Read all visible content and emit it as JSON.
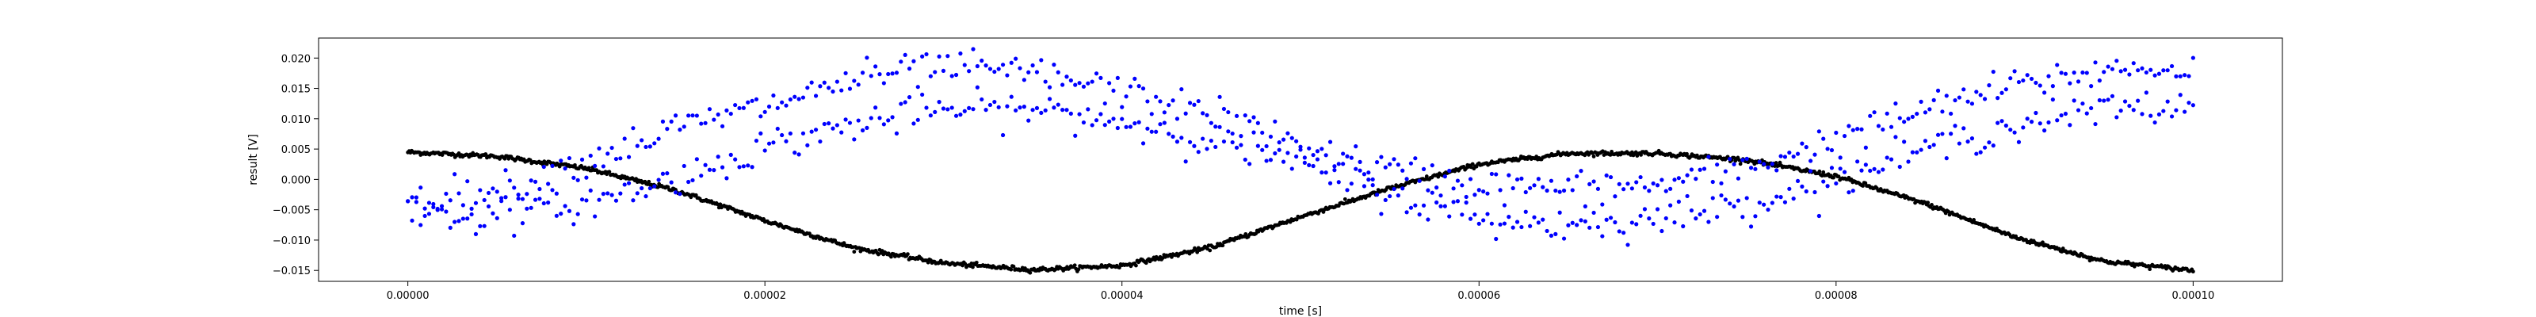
{
  "chart_data": {
    "type": "scatter",
    "title": "",
    "xlabel": "time [s]",
    "ylabel": "result [V]",
    "xlim": [
      -5e-06,
      0.000105
    ],
    "ylim": [
      -0.0168,
      0.0233
    ],
    "x_ticks": [
      0,
      2e-05,
      4e-05,
      6e-05,
      8e-05,
      0.0001
    ],
    "x_tick_labels": [
      "0.00000",
      "0.00002",
      "0.00004",
      "0.00006",
      "0.00008",
      "0.00010"
    ],
    "y_ticks": [
      -0.015,
      -0.01,
      -0.005,
      0.0,
      0.005,
      0.01,
      0.015,
      0.02
    ],
    "y_tick_labels": [
      "−0.015",
      "−0.010",
      "−0.005",
      "0.000",
      "0.005",
      "0.010",
      "0.015",
      "0.020"
    ],
    "grid": false,
    "legend": "none",
    "series": [
      {
        "color": "#000000",
        "marker": "dense-dots",
        "x": [
          0,
          5e-06,
          1e-05,
          1.5e-05,
          2e-05,
          2.5e-05,
          3e-05,
          3.5e-05,
          4e-05,
          4.5e-05,
          5e-05,
          5.5e-05,
          6e-05,
          6.5e-05,
          7e-05,
          7.5e-05,
          8e-05,
          8.5e-05,
          9e-05,
          9.5e-05,
          0.0001
        ],
        "y": [
          0.0045,
          0.0038,
          0.0018,
          -0.0018,
          -0.0068,
          -0.0113,
          -0.0138,
          -0.0149,
          -0.0142,
          -0.0112,
          -0.0062,
          -0.0015,
          0.0025,
          0.0043,
          0.0043,
          0.0032,
          0.0005,
          -0.004,
          -0.0095,
          -0.0135,
          -0.015
        ]
      },
      {
        "color": "#0000ff",
        "marker": "dots",
        "name_upper_x": [
          0,
          5e-06,
          1e-05,
          1.5e-05,
          2e-05,
          2.5e-05,
          3e-05,
          3.5e-05,
          4e-05,
          4.5e-05,
          5e-05,
          5.5e-05,
          6e-05,
          6.5e-05,
          7e-05,
          7.5e-05,
          8e-05,
          8.5e-05,
          9e-05,
          9.5e-05,
          0.0001
        ],
        "upper_y": [
          -0.003,
          -0.002,
          0.003,
          0.0085,
          0.012,
          0.0165,
          0.0185,
          0.0175,
          0.0145,
          0.011,
          0.0055,
          0.0015,
          -0.001,
          -0.0015,
          -0.001,
          0.002,
          0.0065,
          0.0115,
          0.0155,
          0.018,
          0.0185
        ],
        "lower_y": [
          -0.0055,
          -0.006,
          -0.004,
          0.0,
          0.0055,
          0.009,
          0.0115,
          0.0115,
          0.0095,
          0.0065,
          0.0025,
          -0.0025,
          -0.0065,
          -0.0075,
          -0.0065,
          -0.004,
          0.0,
          0.005,
          0.009,
          0.0115,
          0.0118
        ]
      }
    ]
  }
}
